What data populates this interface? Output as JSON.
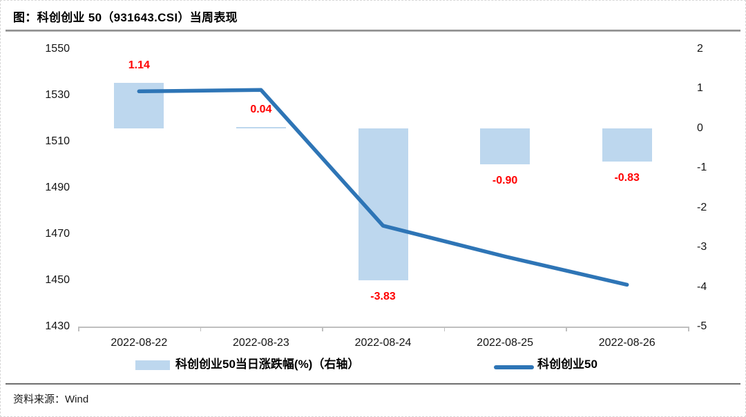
{
  "header": {
    "title": "图：科创创业 50（931643.CSI）当周表现"
  },
  "footer": {
    "source": "资料来源：Wind"
  },
  "colors": {
    "bar_fill": "#BDD7EE",
    "line_stroke": "#2E75B6",
    "data_label": "#FF0000",
    "axis_line": "#BFBFBF",
    "axis_text": "#141414"
  },
  "chart_data": {
    "type": "combo",
    "subtype": "bar + line, dual axis",
    "categories": [
      "2022-08-22",
      "2022-08-23",
      "2022-08-24",
      "2022-08-25",
      "2022-08-26"
    ],
    "series": [
      {
        "name": "科创创业50当日涨跌幅(%)（右轴）",
        "type": "bar",
        "axis": "right",
        "values": [
          1.14,
          0.04,
          -3.83,
          -0.9,
          -0.83
        ],
        "data_labels": [
          "1.14",
          "0.04",
          "-3.83",
          "-0.90",
          "-0.83"
        ],
        "color": "#BDD7EE",
        "label_color": "#FF0000"
      },
      {
        "name": "科创创业50",
        "type": "line",
        "axis": "left",
        "values": [
          1531.7,
          1532.3,
          1473.6,
          1460.3,
          1448.1
        ],
        "estimated": true,
        "color": "#2E75B6"
      }
    ],
    "left_axis": {
      "min": 1430,
      "max": 1550,
      "ticks": [
        "1550",
        "1530",
        "1510",
        "1490",
        "1470",
        "1450",
        "1430"
      ]
    },
    "right_axis": {
      "min": -5,
      "max": 2,
      "ticks": [
        "2",
        "1",
        "0",
        "-1",
        "-2",
        "-3",
        "-4",
        "-5"
      ]
    },
    "grid": false,
    "legend_position": "bottom"
  }
}
